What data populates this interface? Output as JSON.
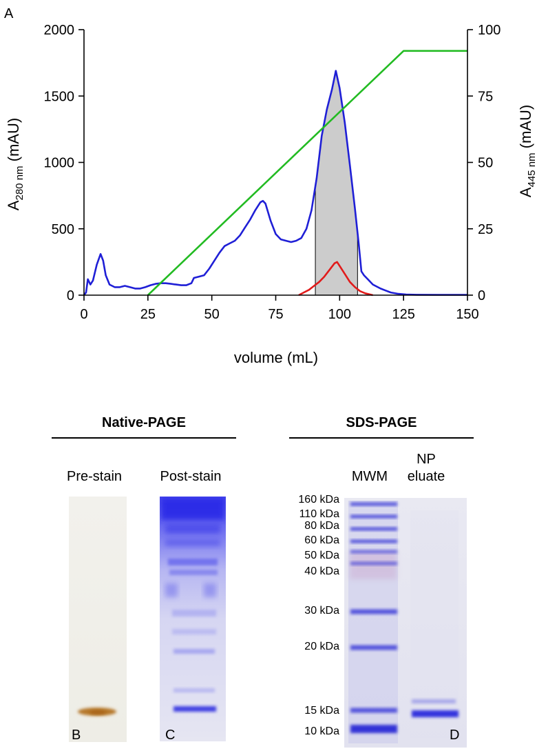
{
  "panels": {
    "a": "A",
    "b": "B",
    "c": "C",
    "d": "D"
  },
  "chart_data": {
    "type": "line",
    "xlabel": "volume (mL)",
    "ylabel_left": {
      "main": "A",
      "sub": "280 nm",
      "unit": " (mAU)"
    },
    "ylabel_right": {
      "main": "A",
      "sub": "445 nm",
      "unit": " (mAU)"
    },
    "xlim": [
      0,
      150
    ],
    "ylim_left": [
      0,
      2000
    ],
    "ylim_right": [
      0,
      100
    ],
    "xticks": [
      0,
      25,
      50,
      75,
      100,
      125,
      150
    ],
    "yticks_left": [
      0,
      500,
      1000,
      1500,
      2000
    ],
    "yticks_right": [
      0,
      25,
      50,
      75,
      100
    ],
    "grid": false,
    "shaded_region": {
      "x": [
        90.5,
        107
      ],
      "axis": "left",
      "color": "#cccccc"
    },
    "series": [
      {
        "axis": "left",
        "color": "#1f1fd6",
        "points": [
          [
            0,
            0
          ],
          [
            0.8,
            20
          ],
          [
            1.5,
            120
          ],
          [
            2.5,
            80
          ],
          [
            3.5,
            110
          ],
          [
            5,
            230
          ],
          [
            6.5,
            310
          ],
          [
            7.5,
            260
          ],
          [
            8.5,
            150
          ],
          [
            10,
            80
          ],
          [
            12,
            60
          ],
          [
            14,
            60
          ],
          [
            16,
            70
          ],
          [
            18,
            60
          ],
          [
            20,
            50
          ],
          [
            22,
            50
          ],
          [
            24,
            60
          ],
          [
            26,
            75
          ],
          [
            28,
            85
          ],
          [
            30,
            90
          ],
          [
            32,
            90
          ],
          [
            34,
            85
          ],
          [
            36,
            80
          ],
          [
            38,
            75
          ],
          [
            40,
            75
          ],
          [
            42,
            90
          ],
          [
            43,
            130
          ],
          [
            45,
            140
          ],
          [
            47,
            150
          ],
          [
            49,
            200
          ],
          [
            51,
            260
          ],
          [
            53,
            320
          ],
          [
            55,
            370
          ],
          [
            57,
            390
          ],
          [
            59,
            410
          ],
          [
            61,
            450
          ],
          [
            63,
            510
          ],
          [
            65,
            570
          ],
          [
            67,
            640
          ],
          [
            69,
            700
          ],
          [
            70,
            710
          ],
          [
            71,
            690
          ],
          [
            73,
            560
          ],
          [
            75,
            460
          ],
          [
            77,
            420
          ],
          [
            79,
            410
          ],
          [
            81,
            400
          ],
          [
            83,
            410
          ],
          [
            85,
            430
          ],
          [
            87,
            500
          ],
          [
            89,
            640
          ],
          [
            91,
            880
          ],
          [
            93,
            1200
          ],
          [
            95,
            1400
          ],
          [
            97,
            1550
          ],
          [
            98.5,
            1690
          ],
          [
            100,
            1560
          ],
          [
            102,
            1300
          ],
          [
            104,
            980
          ],
          [
            106,
            650
          ],
          [
            107.5,
            380
          ],
          [
            108.5,
            180
          ],
          [
            109.5,
            150
          ],
          [
            111,
            120
          ],
          [
            113,
            80
          ],
          [
            116,
            50
          ],
          [
            118,
            35
          ],
          [
            120,
            20
          ],
          [
            123,
            10
          ],
          [
            126,
            5
          ],
          [
            130,
            3
          ],
          [
            140,
            2
          ],
          [
            150,
            2
          ]
        ]
      },
      {
        "axis": "right",
        "color": "#e11b1b",
        "points": [
          [
            84,
            0
          ],
          [
            86,
            1
          ],
          [
            88,
            2
          ],
          [
            90,
            3.5
          ],
          [
            92,
            5
          ],
          [
            94,
            7
          ],
          [
            96,
            9.5
          ],
          [
            98,
            12
          ],
          [
            99,
            12.5
          ],
          [
            100,
            11
          ],
          [
            102,
            8
          ],
          [
            104,
            5
          ],
          [
            106,
            3
          ],
          [
            108,
            1.5
          ],
          [
            110,
            0.7
          ],
          [
            113,
            0
          ]
        ]
      },
      {
        "axis": "right",
        "color": "#22bb22",
        "points": [
          [
            25,
            0
          ],
          [
            125,
            92
          ],
          [
            150,
            92
          ]
        ]
      }
    ]
  },
  "gels": {
    "native": {
      "title": "Native-PAGE",
      "lanes": [
        "Pre-stain",
        "Post-stain"
      ]
    },
    "sds": {
      "title": "SDS-PAGE",
      "lane_mwm": "MWM",
      "lane_np": [
        "NP",
        "eluate"
      ],
      "markers": [
        "160 kDa",
        "110 kDa",
        "80 kDa",
        "60 kDa",
        "50 kDa",
        "40 kDa",
        "30 kDa",
        "20 kDa",
        "15 kDa",
        "10 kDa"
      ]
    }
  }
}
